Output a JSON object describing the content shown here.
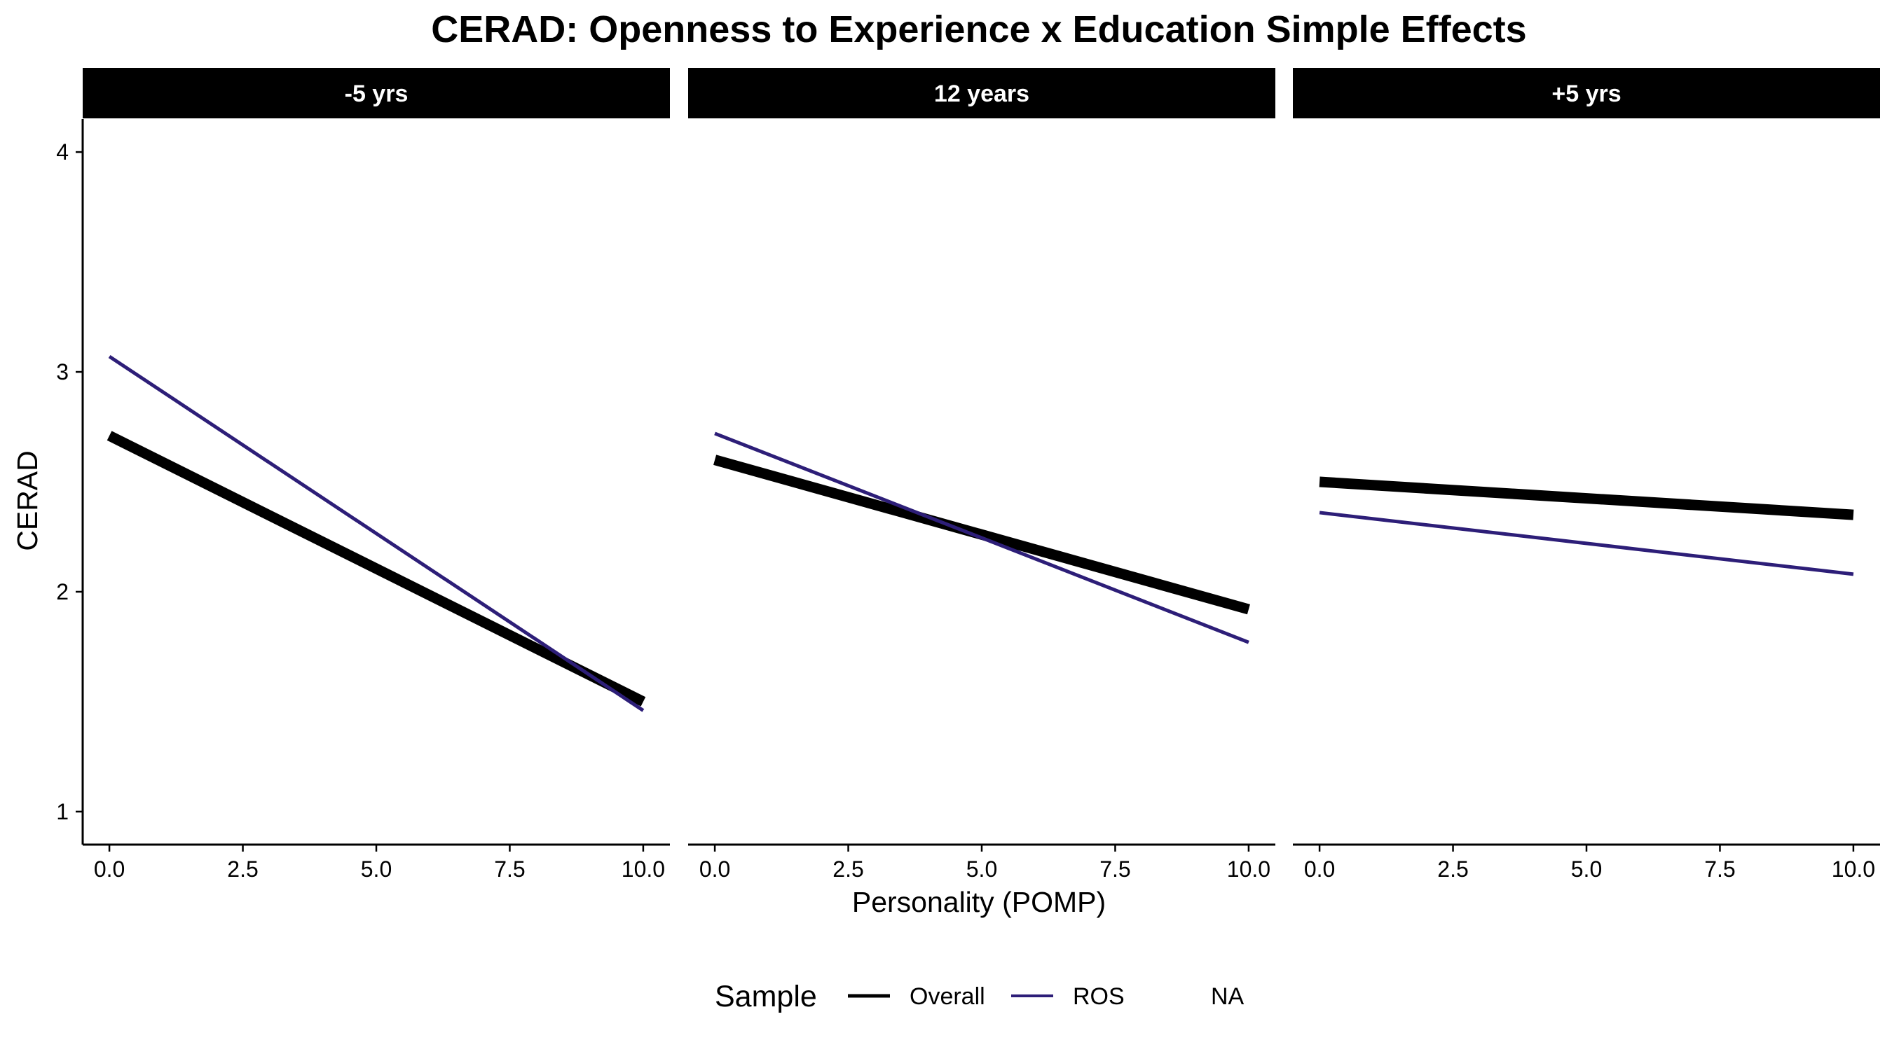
{
  "chart_data": {
    "type": "line",
    "title": "CERAD: Openness to Experience x Education Simple Effects",
    "xlabel": "Personality (POMP)",
    "ylabel": "CERAD",
    "xlim": [
      -0.5,
      10.5
    ],
    "ylim": [
      0.85,
      4.15
    ],
    "x_ticks": [
      0.0,
      2.5,
      5.0,
      7.5,
      10.0
    ],
    "x_tick_labels": [
      "0.0",
      "2.5",
      "5.0",
      "7.5",
      "10.0"
    ],
    "y_ticks": [
      1,
      2,
      3,
      4
    ],
    "y_tick_labels": [
      "1",
      "2",
      "3",
      "4"
    ],
    "grid": false,
    "legend": {
      "title": "Sample",
      "position": "bottom",
      "entries": [
        {
          "label": "Overall",
          "color": "#000000"
        },
        {
          "label": "ROS",
          "color": "#2D1E78"
        },
        {
          "label": "NA",
          "color": null
        }
      ]
    },
    "panels": [
      {
        "label": "-5 yrs",
        "series": [
          {
            "name": "Overall",
            "color": "#000000",
            "x": [
              0,
              10
            ],
            "y": [
              2.71,
              1.5
            ]
          },
          {
            "name": "ROS",
            "color": "#2D1E78",
            "x": [
              0,
              10
            ],
            "y": [
              3.07,
              1.46
            ]
          }
        ]
      },
      {
        "label": "12 years",
        "series": [
          {
            "name": "Overall",
            "color": "#000000",
            "x": [
              0,
              10
            ],
            "y": [
              2.6,
              1.92
            ]
          },
          {
            "name": "ROS",
            "color": "#2D1E78",
            "x": [
              0,
              10
            ],
            "y": [
              2.72,
              1.77
            ]
          }
        ]
      },
      {
        "label": "+5 yrs",
        "series": [
          {
            "name": "Overall",
            "color": "#000000",
            "x": [
              0,
              10
            ],
            "y": [
              2.5,
              2.35
            ]
          },
          {
            "name": "ROS",
            "color": "#2D1E78",
            "x": [
              0,
              10
            ],
            "y": [
              2.36,
              2.08
            ]
          }
        ]
      }
    ]
  }
}
